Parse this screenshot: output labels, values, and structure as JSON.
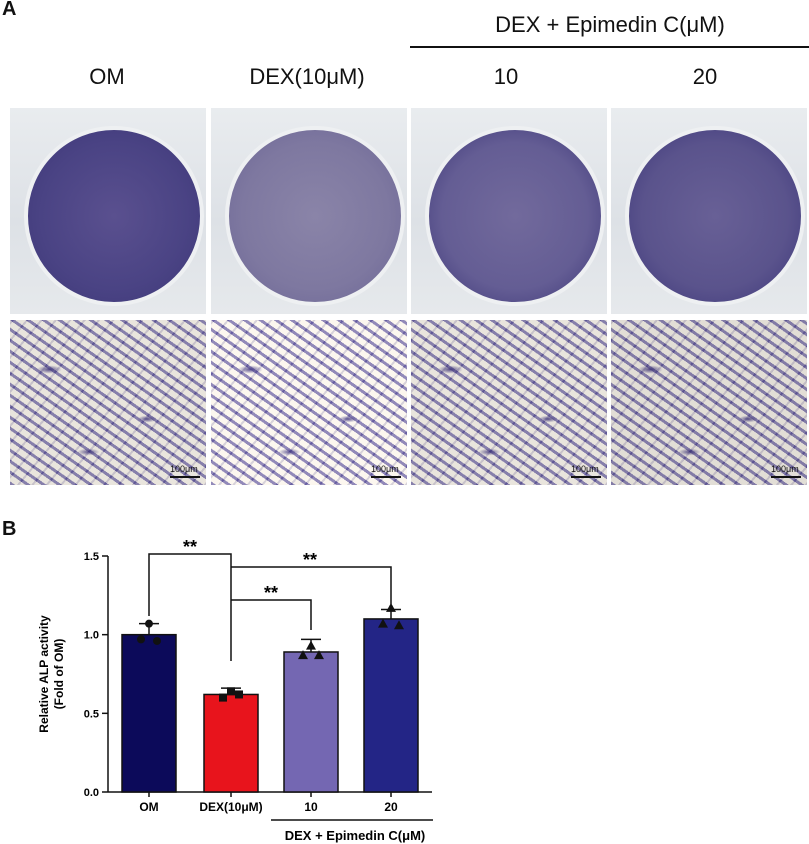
{
  "panel_a": {
    "letter": "A",
    "group_label": "DEX + Epimedin C(μM)",
    "columns": [
      "OM",
      "DEX(10μM)",
      "10",
      "20"
    ],
    "scale_bar": "100μm"
  },
  "panel_b": {
    "letter": "B",
    "group_label": "DEX + Epimedin C(μM)",
    "significance": [
      "**",
      "**",
      "**"
    ]
  },
  "colors": {
    "OM": "#0c0a5a",
    "DEX": "#e8141c",
    "ten": "#7467b2",
    "twenty": "#232586",
    "stain": "#3e3480"
  },
  "chart_data": {
    "type": "bar",
    "categories": [
      "OM",
      "DEX(10μM)",
      "10",
      "20"
    ],
    "values": [
      1.0,
      0.62,
      0.89,
      1.1
    ],
    "errors": [
      0.07,
      0.04,
      0.08,
      0.06
    ],
    "points": [
      [
        1.07,
        0.97,
        0.96
      ],
      [
        0.64,
        0.6,
        0.62
      ],
      [
        0.93,
        0.87,
        0.87
      ],
      [
        1.17,
        1.07,
        1.06
      ]
    ],
    "title": "",
    "xlabel": "",
    "ylabel": "Relative ALP activity\n(Fold of OM)",
    "ylabel_lines": [
      "Relative ALP activity",
      "(Fold of OM)"
    ],
    "ylim": [
      0,
      1.5
    ],
    "yticks": [
      "0.0",
      "0.5",
      "1.0",
      "1.5"
    ],
    "ytick_values": [
      0,
      0.5,
      1.0,
      1.5
    ],
    "grid": false
  }
}
